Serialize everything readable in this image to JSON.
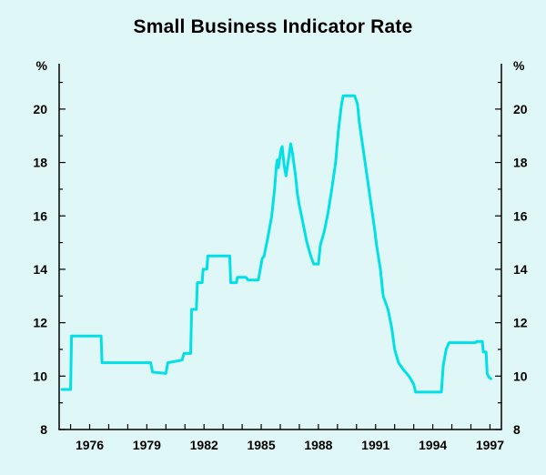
{
  "chart_data": {
    "type": "line",
    "title": "Small Business Indicator Rate",
    "y_unit_label": "%",
    "x_tick_labels": [
      1976,
      1979,
      1982,
      1985,
      1988,
      1991,
      1994,
      1997
    ],
    "y_tick_labels": [
      8,
      10,
      12,
      14,
      16,
      18,
      20
    ],
    "x_range": [
      1974.4,
      1997.6
    ],
    "y_range": [
      8,
      21.7
    ],
    "ylim": [
      8,
      21.7
    ],
    "grid": false,
    "legend": "none",
    "background_color": "#e0f7f7",
    "axis_color": "#000000",
    "line_color": "#00e0e6",
    "series": [
      {
        "name": "Small business indicator rate (%)",
        "points": [
          [
            1974.55,
            9.5
          ],
          [
            1975.0,
            9.5
          ],
          [
            1975.05,
            11.5
          ],
          [
            1976.6,
            11.5
          ],
          [
            1976.65,
            10.5
          ],
          [
            1979.2,
            10.5
          ],
          [
            1979.3,
            10.15
          ],
          [
            1980.0,
            10.1
          ],
          [
            1980.1,
            10.5
          ],
          [
            1980.85,
            10.6
          ],
          [
            1980.95,
            10.85
          ],
          [
            1981.3,
            10.85
          ],
          [
            1981.35,
            12.5
          ],
          [
            1981.6,
            12.5
          ],
          [
            1981.65,
            13.5
          ],
          [
            1981.9,
            13.5
          ],
          [
            1981.95,
            14.0
          ],
          [
            1982.15,
            14.0
          ],
          [
            1982.2,
            14.5
          ],
          [
            1983.35,
            14.5
          ],
          [
            1983.4,
            13.5
          ],
          [
            1983.7,
            13.5
          ],
          [
            1983.75,
            13.7
          ],
          [
            1984.2,
            13.7
          ],
          [
            1984.3,
            13.6
          ],
          [
            1984.85,
            13.6
          ],
          [
            1984.95,
            14.0
          ],
          [
            1985.05,
            14.4
          ],
          [
            1985.15,
            14.5
          ],
          [
            1985.35,
            15.2
          ],
          [
            1985.55,
            16.0
          ],
          [
            1985.7,
            17.0
          ],
          [
            1985.8,
            17.9
          ],
          [
            1985.85,
            18.1
          ],
          [
            1985.9,
            17.8
          ],
          [
            1986.0,
            18.3
          ],
          [
            1986.05,
            18.5
          ],
          [
            1986.1,
            18.6
          ],
          [
            1986.2,
            17.9
          ],
          [
            1986.3,
            17.5
          ],
          [
            1986.45,
            18.2
          ],
          [
            1986.55,
            18.7
          ],
          [
            1986.65,
            18.3
          ],
          [
            1986.8,
            17.5
          ],
          [
            1986.9,
            16.8
          ],
          [
            1987.0,
            16.4
          ],
          [
            1987.2,
            15.7
          ],
          [
            1987.4,
            15.0
          ],
          [
            1987.6,
            14.5
          ],
          [
            1987.75,
            14.2
          ],
          [
            1988.0,
            14.2
          ],
          [
            1988.1,
            14.9
          ],
          [
            1988.3,
            15.4
          ],
          [
            1988.5,
            16.1
          ],
          [
            1988.7,
            17.0
          ],
          [
            1988.9,
            18.0
          ],
          [
            1989.05,
            19.2
          ],
          [
            1989.2,
            20.1
          ],
          [
            1989.3,
            20.5
          ],
          [
            1989.9,
            20.5
          ],
          [
            1990.05,
            20.2
          ],
          [
            1990.15,
            19.5
          ],
          [
            1990.35,
            18.5
          ],
          [
            1990.55,
            17.5
          ],
          [
            1990.75,
            16.5
          ],
          [
            1990.95,
            15.5
          ],
          [
            1991.05,
            14.9
          ],
          [
            1991.25,
            14.0
          ],
          [
            1991.4,
            13.0
          ],
          [
            1991.65,
            12.5
          ],
          [
            1991.85,
            11.8
          ],
          [
            1992.0,
            11.0
          ],
          [
            1992.2,
            10.5
          ],
          [
            1992.45,
            10.25
          ],
          [
            1992.75,
            10.0
          ],
          [
            1993.0,
            9.7
          ],
          [
            1993.1,
            9.4
          ],
          [
            1994.45,
            9.4
          ],
          [
            1994.55,
            10.4
          ],
          [
            1994.7,
            11.0
          ],
          [
            1994.85,
            11.25
          ],
          [
            1996.25,
            11.25
          ],
          [
            1996.3,
            11.3
          ],
          [
            1996.6,
            11.3
          ],
          [
            1996.65,
            10.9
          ],
          [
            1996.8,
            10.9
          ],
          [
            1996.85,
            10.1
          ],
          [
            1996.95,
            9.95
          ],
          [
            1997.05,
            9.9
          ]
        ]
      }
    ]
  }
}
